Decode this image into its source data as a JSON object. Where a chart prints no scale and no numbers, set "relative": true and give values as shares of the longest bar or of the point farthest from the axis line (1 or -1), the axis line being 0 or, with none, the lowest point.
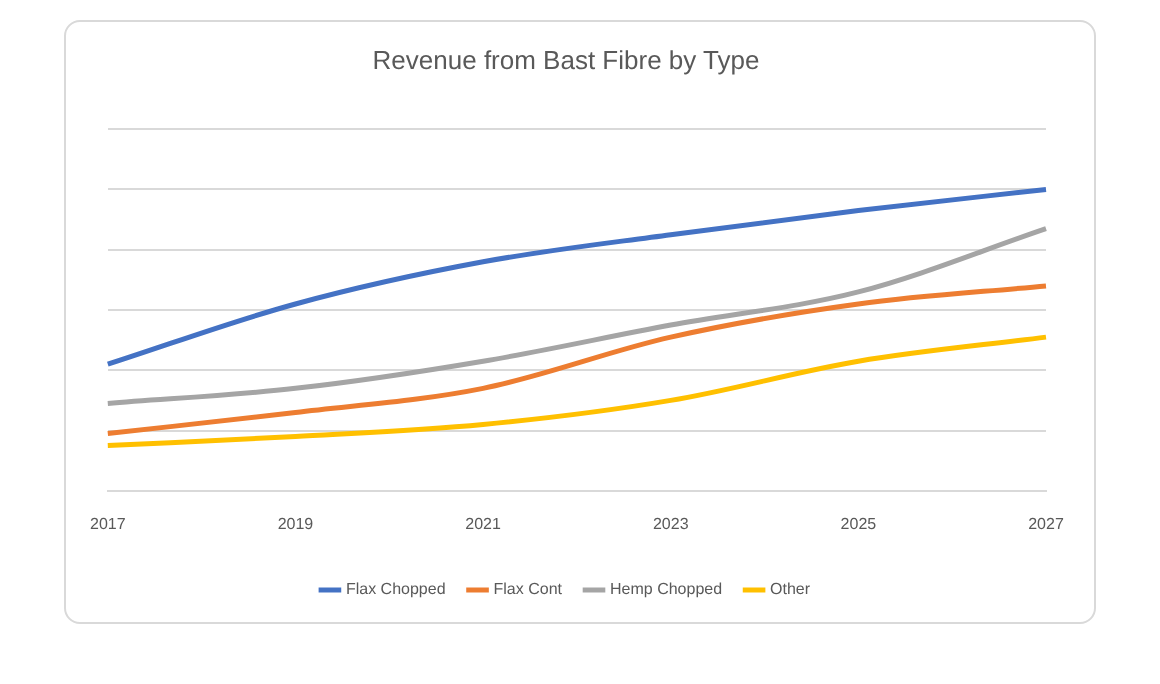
{
  "chart_data": {
    "type": "line",
    "title": "Revenue from Bast Fibre by Type",
    "relative": true,
    "categories": [
      "2017",
      "2019",
      "2021",
      "2023",
      "2025",
      "2027"
    ],
    "series": [
      {
        "name": "Flax Chopped",
        "color": "#4472c4",
        "values": [
          0.42,
          0.62,
          0.76,
          0.85,
          0.93,
          1
        ]
      },
      {
        "name": "Flax Cont",
        "color": "#ed7d31",
        "values": [
          0.19,
          0.26,
          0.34,
          0.51,
          0.62,
          0.68
        ]
      },
      {
        "name": "Hemp Chopped",
        "color": "#a5a5a5",
        "values": [
          0.29,
          0.34,
          0.43,
          0.55,
          0.66,
          0.87
        ]
      },
      {
        "name": "Other",
        "color": "#ffc000",
        "values": [
          0.15,
          0.18,
          0.22,
          0.3,
          0.43,
          0.51
        ]
      }
    ],
    "grid": "y",
    "legend": "bottom",
    "marker": "none",
    "line_style": "solid"
  }
}
